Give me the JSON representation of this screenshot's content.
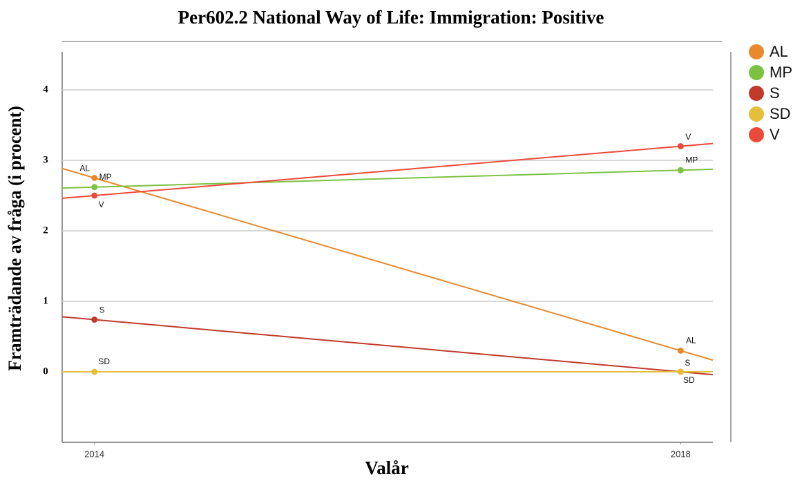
{
  "chart_data": {
    "type": "line",
    "title": "Per602.2 National Way of Life: Immigration: Positive",
    "x_label": "Valår",
    "y_label": "Framträdande av fråga (i procent)",
    "x": [
      2014,
      2018
    ],
    "xlim": [
      2013.78,
      2018.22
    ],
    "xticks": [
      2014,
      2018
    ],
    "ylim": [
      -1,
      4.5
    ],
    "yticks": [
      0,
      1,
      2,
      3,
      4
    ],
    "grid": true,
    "legend": "right",
    "series": [
      {
        "name": "AL",
        "color": "#e8892c",
        "values": [
          2.75,
          0.3
        ]
      },
      {
        "name": "MP",
        "color": "#7cc242",
        "values": [
          2.62,
          2.86
        ]
      },
      {
        "name": "S",
        "color": "#c0392b",
        "values": [
          0.74,
          0
        ]
      },
      {
        "name": "SD",
        "color": "#e6bf3a",
        "values": [
          0,
          0
        ]
      },
      {
        "name": "V",
        "color": "#ec4a38",
        "values": [
          2.5,
          3.2
        ]
      }
    ]
  }
}
